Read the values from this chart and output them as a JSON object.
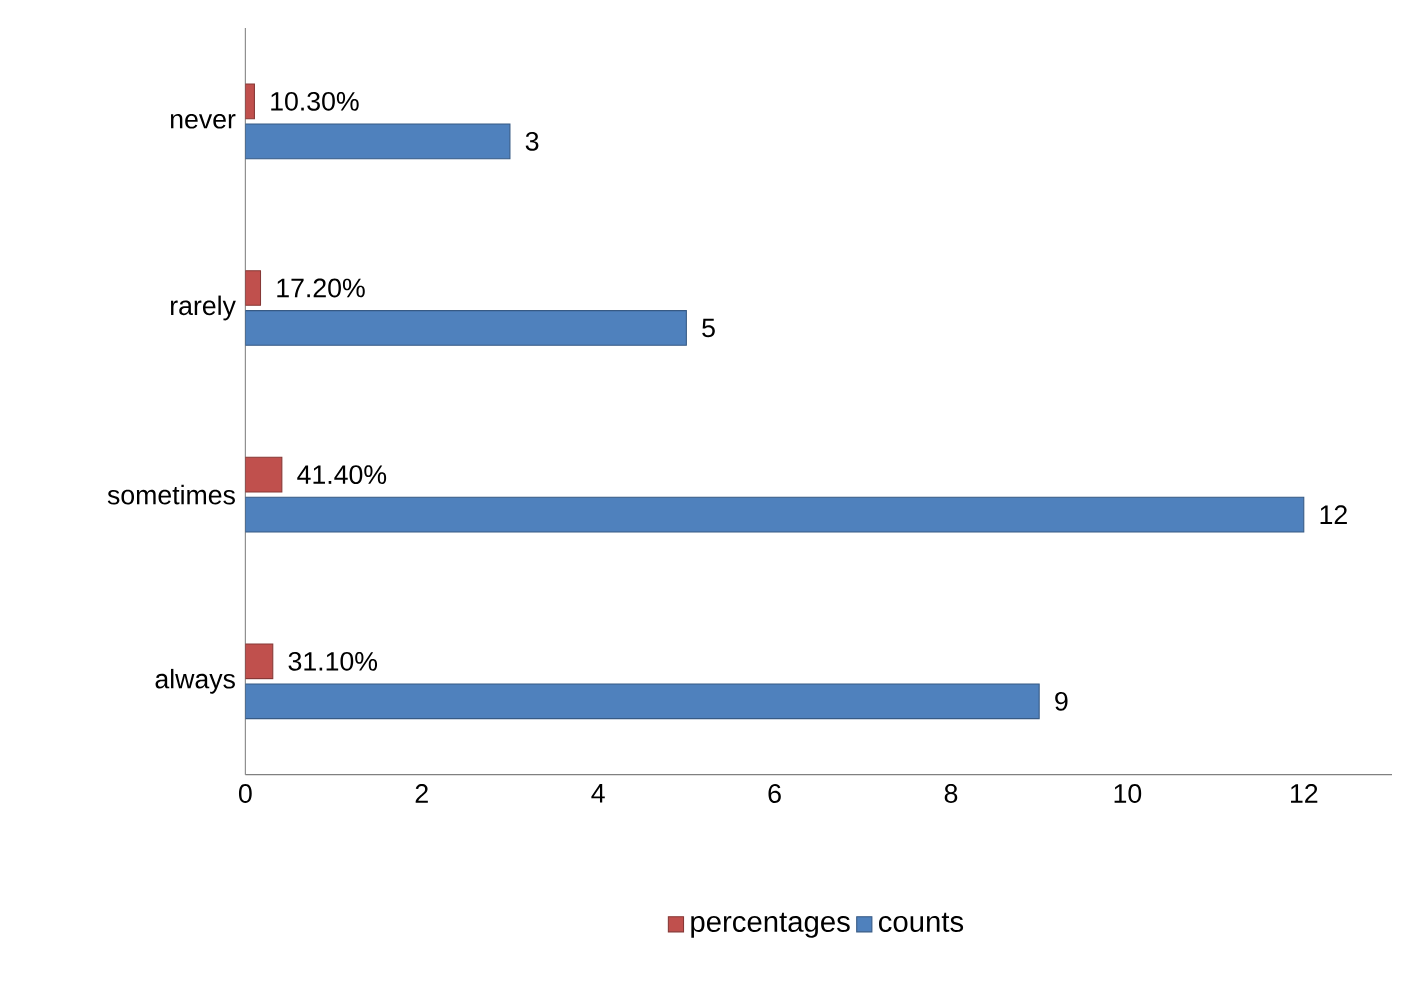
{
  "chart_data": {
    "type": "bar",
    "orientation": "horizontal",
    "categories": [
      "never",
      "rarely",
      "sometimes",
      "always"
    ],
    "series": [
      {
        "name": "percentages",
        "color": "#c0504d",
        "values": [
          0.103,
          0.172,
          0.414,
          0.311
        ],
        "value_labels": [
          "10.30%",
          "17.20%",
          "41.40%",
          "31.10%"
        ]
      },
      {
        "name": "counts",
        "color": "#4f81bd",
        "values": [
          3,
          5,
          12,
          9
        ],
        "value_labels": [
          "3",
          "5",
          "12",
          "9"
        ]
      }
    ],
    "xlim": [
      0,
      13
    ],
    "xticks": [
      0,
      2,
      4,
      6,
      8,
      10,
      12
    ],
    "grid": false,
    "legend": "bottom"
  }
}
